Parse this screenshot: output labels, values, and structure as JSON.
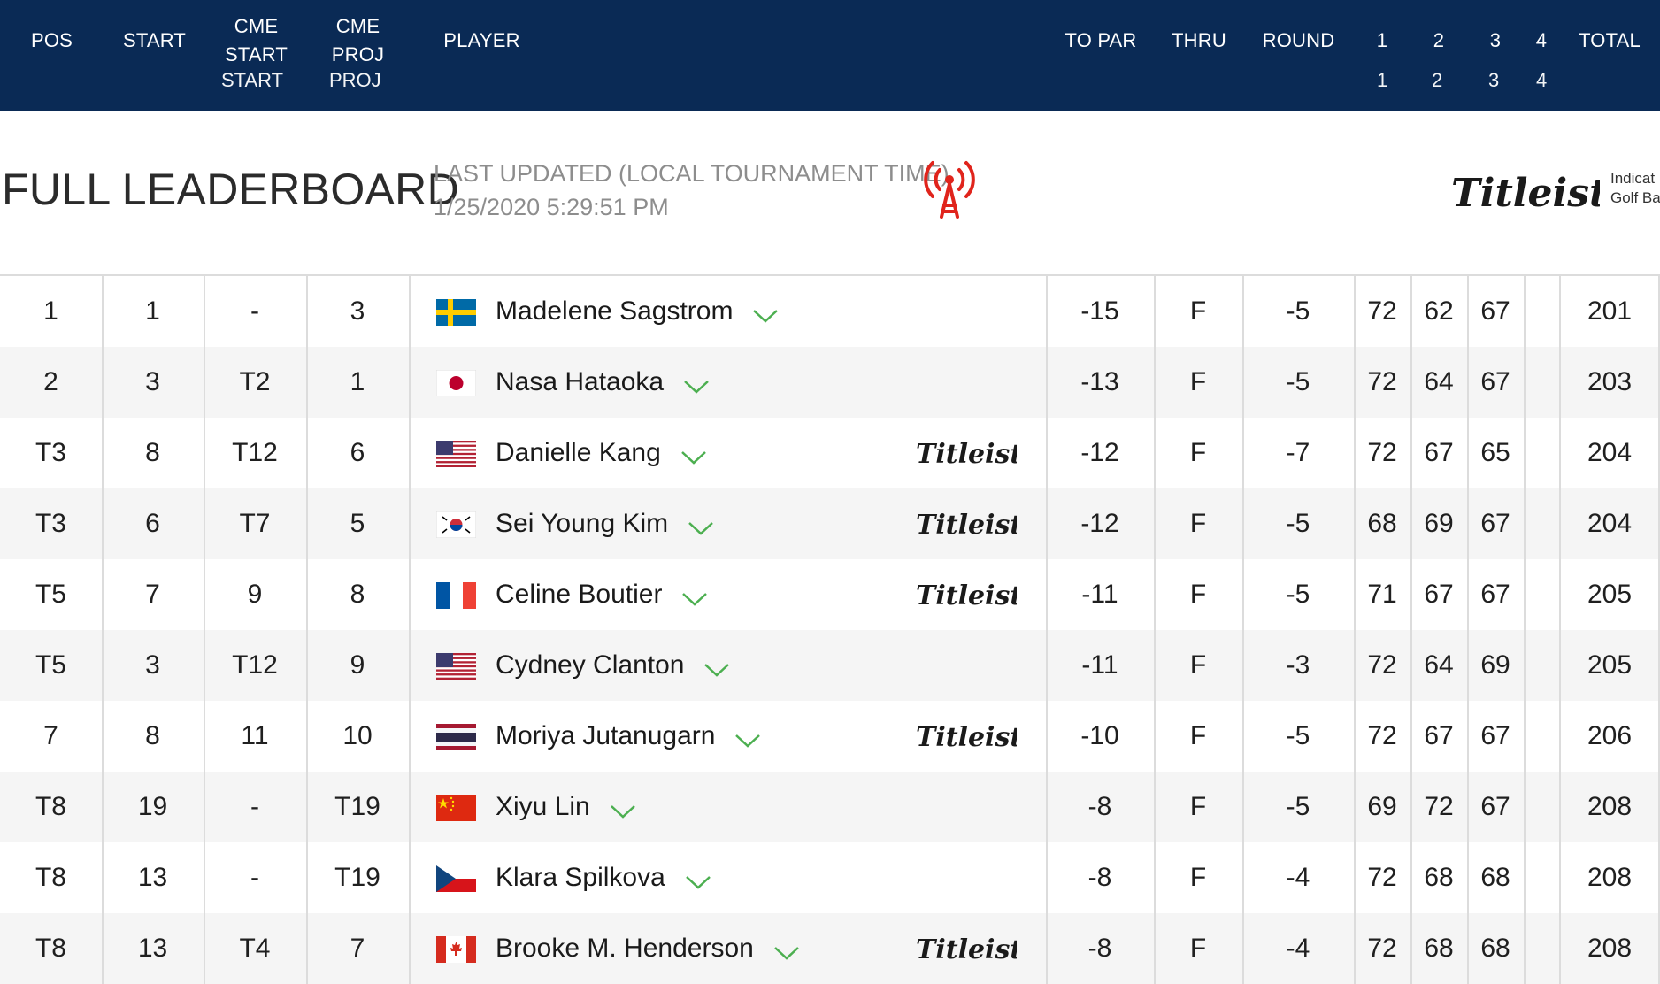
{
  "header": {
    "pos": "POS",
    "start": "START",
    "cme_start_1": "CME",
    "cme_start_2": "START",
    "cme_proj_1": "CME",
    "cme_proj_2": "PROJ",
    "player": "PLAYER",
    "to_par": "TO PAR",
    "thru": "THRU",
    "round": "ROUND",
    "r1": "1",
    "r2": "2",
    "r3": "3",
    "r4": "4",
    "total": "TOTAL",
    "ghost_start": "START",
    "ghost_proj": "PROJ",
    "ghost_r1": "1",
    "ghost_r2": "2",
    "ghost_r3": "3",
    "ghost_r4": "4"
  },
  "page": {
    "title": "FULL LEADERBOARD",
    "updated_label": "LAST UPDATED (LOCAL TOURNAMENT TIME)",
    "updated_time": "1/25/2020 5:29:51 PM",
    "sponsor_logo_text": "Titleist",
    "sponsor_note_1": "Indicat",
    "sponsor_note_2": "Golf Ba"
  },
  "colors": {
    "header_bg": "#0a2a55",
    "live_red": "#e0241c",
    "chevron_green": "#4caf50",
    "row_alt": "#f5f5f5"
  },
  "rows": [
    {
      "pos": "1",
      "start": "1",
      "cme_start": "-",
      "cme_proj": "3",
      "flag": "sweden-flag",
      "name": "Madelene Sagstrom",
      "titleist": false,
      "to_par": "-15",
      "thru": "F",
      "round": "-5",
      "r1": "72",
      "r2": "62",
      "r3": "67",
      "r4": "",
      "total": "201"
    },
    {
      "pos": "2",
      "start": "3",
      "cme_start": "T2",
      "cme_proj": "1",
      "flag": "japan-flag",
      "name": "Nasa Hataoka",
      "titleist": false,
      "to_par": "-13",
      "thru": "F",
      "round": "-5",
      "r1": "72",
      "r2": "64",
      "r3": "67",
      "r4": "",
      "total": "203"
    },
    {
      "pos": "T3",
      "start": "8",
      "cme_start": "T12",
      "cme_proj": "6",
      "flag": "usa-flag",
      "name": "Danielle Kang",
      "titleist": true,
      "to_par": "-12",
      "thru": "F",
      "round": "-7",
      "r1": "72",
      "r2": "67",
      "r3": "65",
      "r4": "",
      "total": "204"
    },
    {
      "pos": "T3",
      "start": "6",
      "cme_start": "T7",
      "cme_proj": "5",
      "flag": "korea-flag",
      "name": "Sei Young Kim",
      "titleist": true,
      "to_par": "-12",
      "thru": "F",
      "round": "-5",
      "r1": "68",
      "r2": "69",
      "r3": "67",
      "r4": "",
      "total": "204"
    },
    {
      "pos": "T5",
      "start": "7",
      "cme_start": "9",
      "cme_proj": "8",
      "flag": "france-flag",
      "name": "Celine Boutier",
      "titleist": true,
      "to_par": "-11",
      "thru": "F",
      "round": "-5",
      "r1": "71",
      "r2": "67",
      "r3": "67",
      "r4": "",
      "total": "205"
    },
    {
      "pos": "T5",
      "start": "3",
      "cme_start": "T12",
      "cme_proj": "9",
      "flag": "usa-flag",
      "name": "Cydney Clanton",
      "titleist": false,
      "to_par": "-11",
      "thru": "F",
      "round": "-3",
      "r1": "72",
      "r2": "64",
      "r3": "69",
      "r4": "",
      "total": "205"
    },
    {
      "pos": "7",
      "start": "8",
      "cme_start": "11",
      "cme_proj": "10",
      "flag": "thailand-flag",
      "name": "Moriya Jutanugarn",
      "titleist": true,
      "to_par": "-10",
      "thru": "F",
      "round": "-5",
      "r1": "72",
      "r2": "67",
      "r3": "67",
      "r4": "",
      "total": "206"
    },
    {
      "pos": "T8",
      "start": "19",
      "cme_start": "-",
      "cme_proj": "T19",
      "flag": "china-flag",
      "name": "Xiyu Lin",
      "titleist": false,
      "to_par": "-8",
      "thru": "F",
      "round": "-5",
      "r1": "69",
      "r2": "72",
      "r3": "67",
      "r4": "",
      "total": "208"
    },
    {
      "pos": "T8",
      "start": "13",
      "cme_start": "-",
      "cme_proj": "T19",
      "flag": "czech-flag",
      "name": "Klara Spilkova",
      "titleist": false,
      "to_par": "-8",
      "thru": "F",
      "round": "-4",
      "r1": "72",
      "r2": "68",
      "r3": "68",
      "r4": "",
      "total": "208"
    },
    {
      "pos": "T8",
      "start": "13",
      "cme_start": "T4",
      "cme_proj": "7",
      "flag": "canada-flag",
      "name": "Brooke M. Henderson",
      "titleist": true,
      "to_par": "-8",
      "thru": "F",
      "round": "-4",
      "r1": "72",
      "r2": "68",
      "r3": "68",
      "r4": "",
      "total": "208"
    }
  ]
}
